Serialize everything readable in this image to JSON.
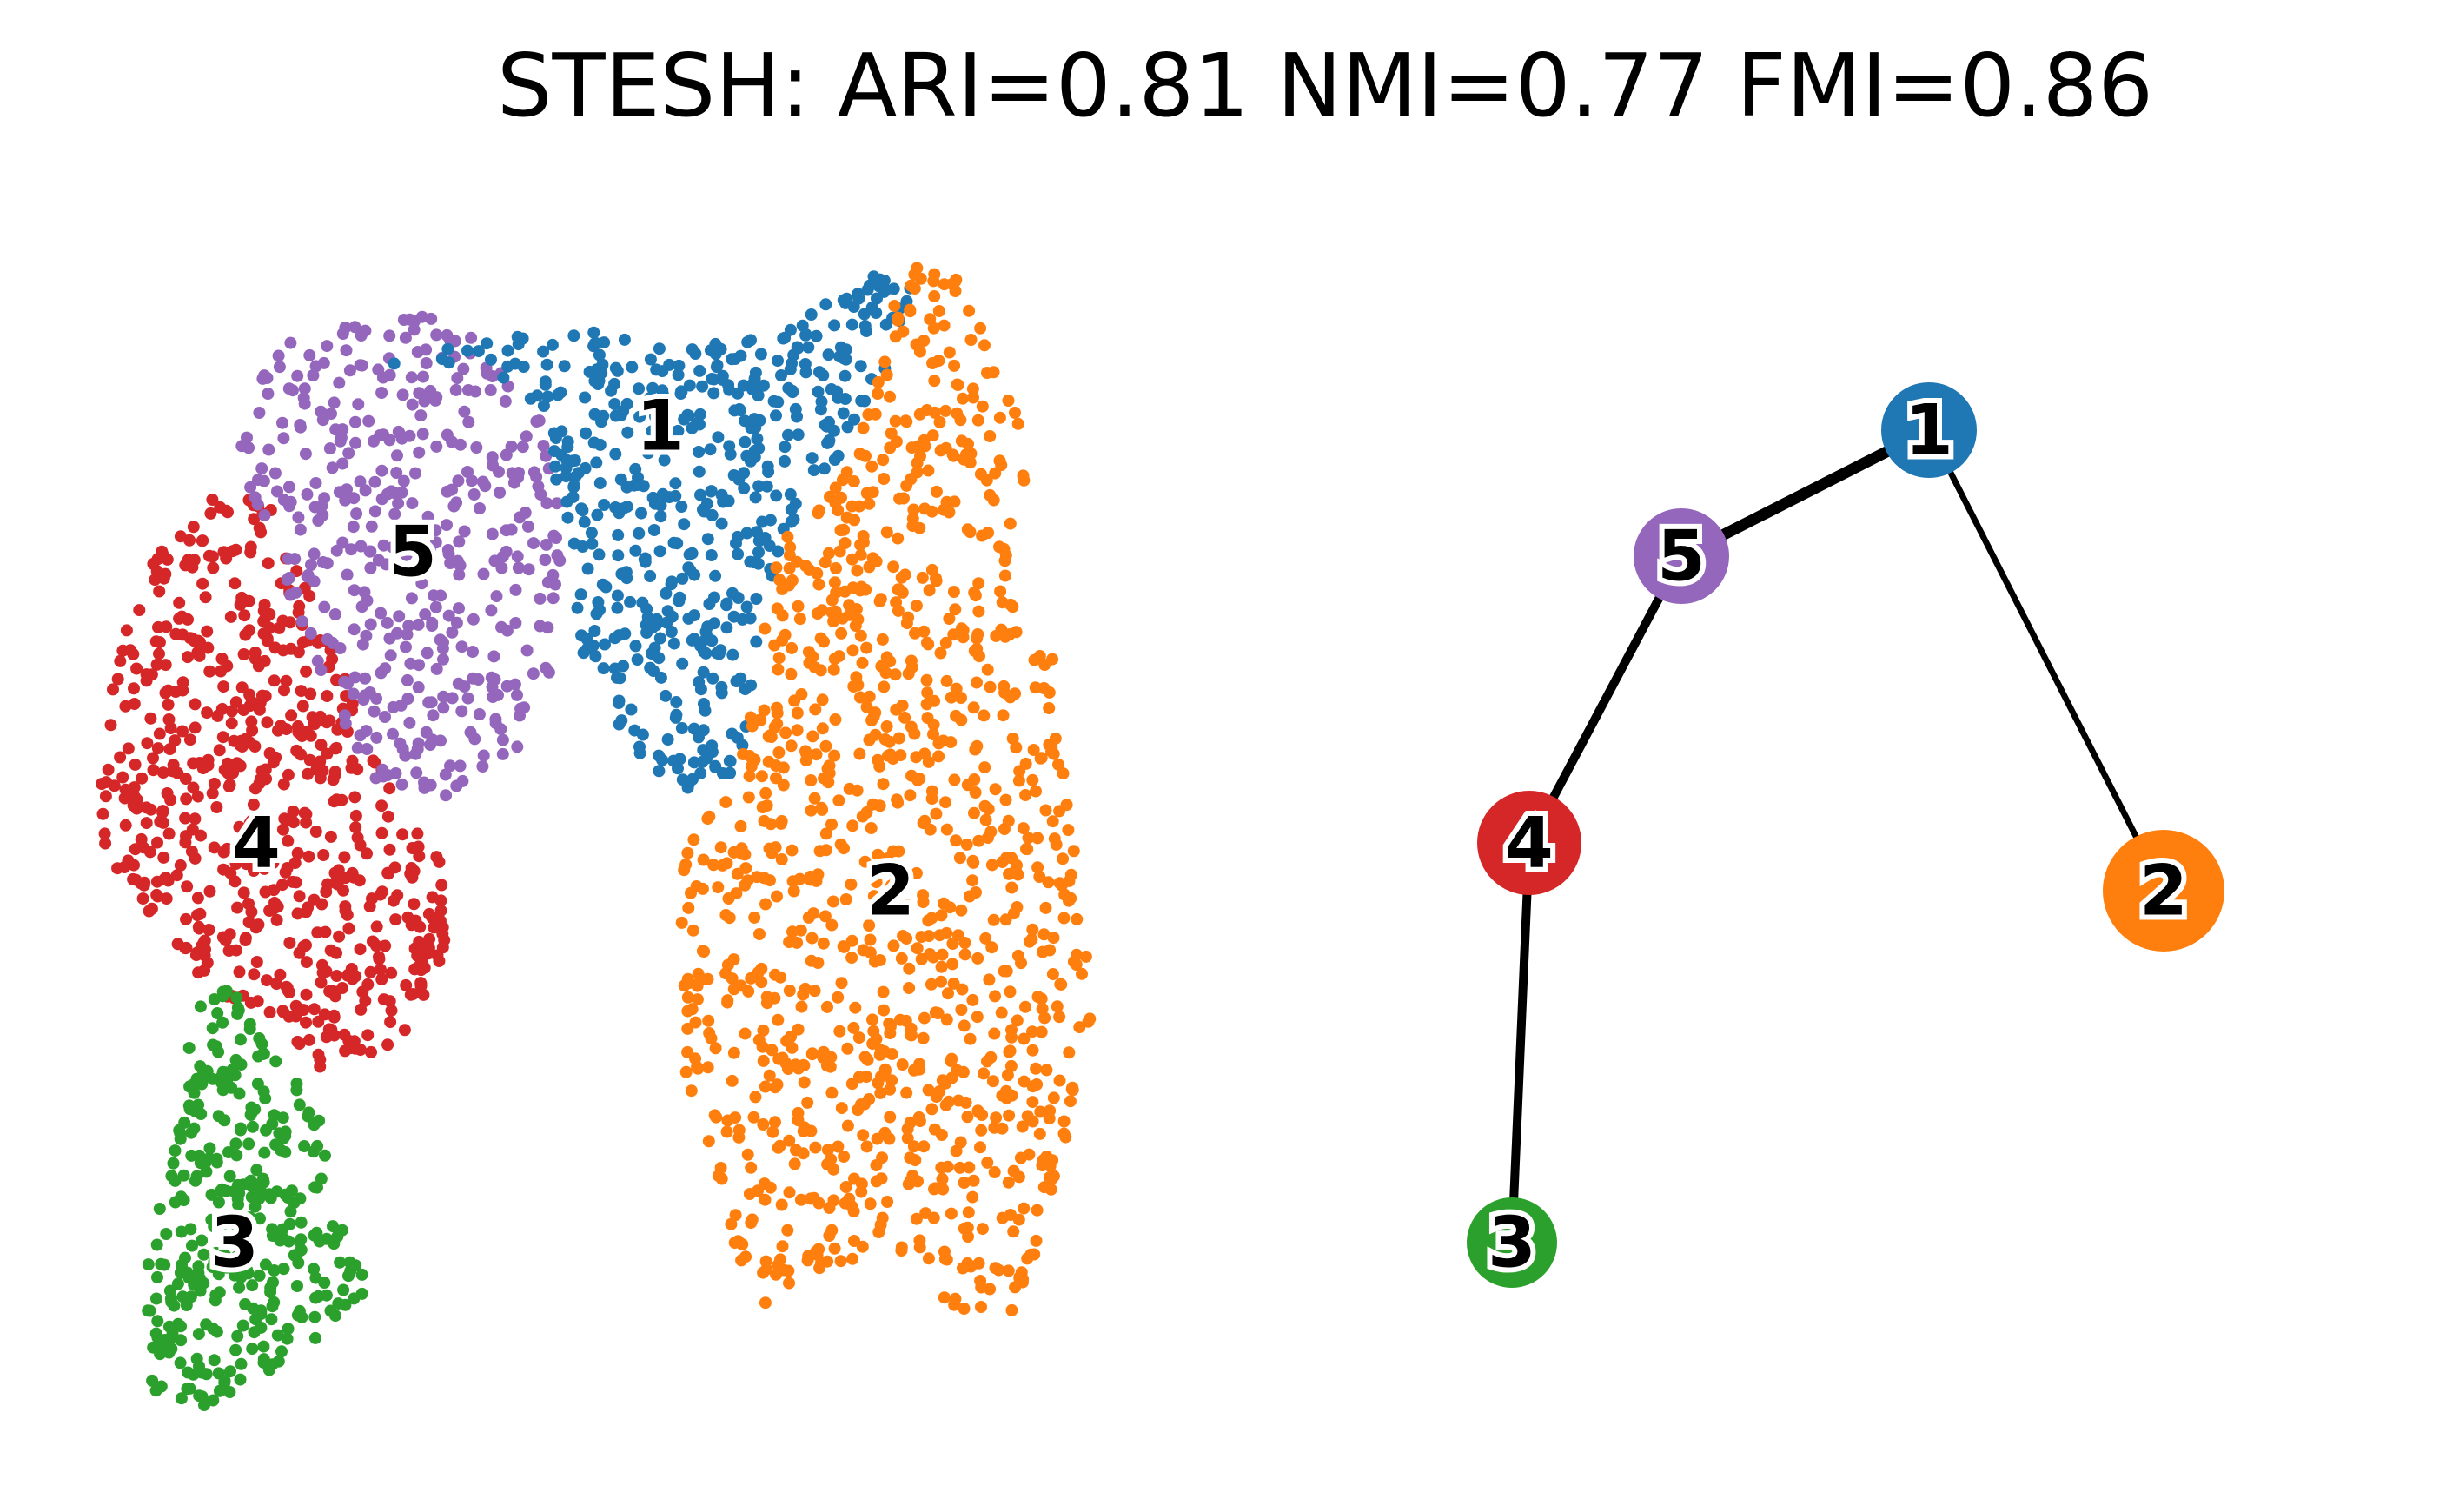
{
  "title": "STESH: ARI=0.81 NMI=0.77 FMI=0.86",
  "colors": {
    "1": "#1f77b4",
    "2": "#ff7f0e",
    "3": "#2ca02c",
    "4": "#d62728",
    "5": "#9467bd"
  },
  "chart_data": [
    {
      "type": "scatter",
      "description_free": true,
      "clusters": [
        {
          "label": "1",
          "color": "#1f77b4"
        },
        {
          "label": "2",
          "color": "#ff7f0e"
        },
        {
          "label": "3",
          "color": "#2ca02c"
        },
        {
          "label": "4",
          "color": "#d62728"
        },
        {
          "label": "5",
          "color": "#9467bd"
        }
      ]
    },
    {
      "type": "graph",
      "nodes": [
        {
          "label": "1",
          "color": "#1f77b4"
        },
        {
          "label": "5",
          "color": "#9467bd"
        },
        {
          "label": "4",
          "color": "#d62728"
        },
        {
          "label": "3",
          "color": "#2ca02c"
        },
        {
          "label": "2",
          "color": "#ff7f0e"
        }
      ],
      "edges": [
        {
          "source": "1",
          "target": "5",
          "weight": 3
        },
        {
          "source": "5",
          "target": "4",
          "weight": 2
        },
        {
          "source": "4",
          "target": "3",
          "weight": 2
        },
        {
          "source": "1",
          "target": "2",
          "weight": 1
        }
      ]
    }
  ]
}
